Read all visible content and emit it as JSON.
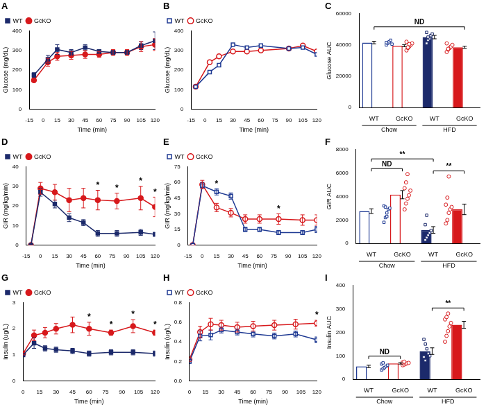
{
  "chart_data": [
    {
      "type": "line",
      "title": "A",
      "x_label": "Time (min)",
      "y_label": "Glucose (mg/dL)",
      "x": [
        -10,
        5,
        15,
        30,
        45,
        60,
        75,
        90,
        105,
        120
      ],
      "series": [
        {
          "name": "WT",
          "color": "#1c2a6b",
          "marker": "square",
          "line_style": "solid",
          "values": [
            175,
            255,
            305,
            290,
            315,
            295,
            290,
            290,
            325,
            350
          ],
          "errors": [
            12,
            20,
            25,
            15,
            15,
            10,
            10,
            10,
            20,
            45
          ]
        },
        {
          "name": "GcKO",
          "color": "#d7191c",
          "marker": "circle",
          "line_style": "solid",
          "values": [
            148,
            240,
            270,
            275,
            280,
            280,
            290,
            290,
            320,
            330
          ],
          "errors": [
            10,
            20,
            20,
            20,
            20,
            15,
            15,
            15,
            25,
            30
          ]
        }
      ],
      "xlim": [
        -15,
        120
      ],
      "xticks": [
        -15,
        0,
        15,
        30,
        45,
        60,
        75,
        90,
        105,
        120
      ],
      "ylim": [
        0,
        400
      ],
      "yticks": [
        0,
        100,
        200,
        300,
        400
      ],
      "grid": false,
      "legend": "upper left"
    },
    {
      "type": "line",
      "title": "B",
      "x_label": "Time (min)",
      "y_label": "Glucose (mg/dL)",
      "x": [
        -10,
        5,
        15,
        30,
        45,
        60,
        90,
        105,
        120
      ],
      "series": [
        {
          "name": "WT",
          "color": "#1f3a93",
          "marker": "open-square",
          "line_style": "solid",
          "values": [
            115,
            190,
            225,
            330,
            315,
            325,
            310,
            315,
            280
          ]
        },
        {
          "name": "GcKO",
          "color": "#d7191c",
          "marker": "open-circle",
          "line_style": "solid",
          "values": [
            115,
            240,
            270,
            295,
            295,
            300,
            310,
            325,
            295
          ]
        }
      ],
      "xlim": [
        -15,
        120
      ],
      "xticks": [
        -15,
        0,
        15,
        30,
        45,
        60,
        75,
        90,
        105,
        120
      ],
      "ylim": [
        0,
        400
      ],
      "yticks": [
        0,
        100,
        200,
        300,
        400
      ],
      "grid": false,
      "legend": "upper left"
    },
    {
      "type": "bar",
      "title": "C",
      "y_label": "Glucose AUC",
      "categories": [
        "WT",
        "GcKO",
        "WT",
        "GcKO"
      ],
      "group": [
        "Chow",
        "Chow",
        "HFD",
        "HFD"
      ],
      "values": [
        41500,
        39500,
        45000,
        38500
      ],
      "errors": [
        800,
        700,
        1100,
        700
      ],
      "points": [
        [
          40000,
          41000,
          42000,
          43000,
          40500,
          41500
        ],
        [
          36500,
          38000,
          39000,
          40000,
          41000,
          42000,
          38500,
          40500
        ],
        [
          41000,
          43000,
          44000,
          46000,
          47000,
          48000,
          45000
        ],
        [
          35500,
          37000,
          38000,
          39000,
          40000,
          41000,
          37500
        ]
      ],
      "colors": [
        "#1f3a93",
        "#d7191c",
        "#1c2a6b",
        "#d7191c"
      ],
      "marker": [
        "open-square",
        "open-circle",
        "square",
        "circle"
      ],
      "comparisons": [
        {
          "from": 0,
          "to": 3,
          "label": "ND"
        }
      ],
      "ylim": [
        0,
        60000
      ],
      "yticks": [
        0,
        20000,
        40000,
        60000
      ],
      "grid": false
    },
    {
      "type": "line",
      "title": "D",
      "x_label": "Time (min)",
      "y_label": "GIR (mg/kg/min)",
      "x": [
        -10,
        0,
        15,
        30,
        45,
        60,
        80,
        105,
        120
      ],
      "series": [
        {
          "name": "WT",
          "color": "#1c2a6b",
          "marker": "square",
          "line_style": "solid",
          "values": [
            0,
            27,
            21,
            14,
            11.5,
            6,
            6,
            6.5,
            5.5
          ],
          "errors": [
            0,
            2,
            2,
            2,
            1.5,
            1.5,
            1.5,
            1.5,
            1
          ]
        },
        {
          "name": "GcKO",
          "color": "#d7191c",
          "marker": "circle",
          "line_style": "solid",
          "values": [
            0,
            29,
            27,
            23,
            24,
            23,
            22.5,
            24,
            19.5
          ],
          "errors": [
            0,
            3,
            4,
            6,
            5,
            5,
            4,
            6,
            5
          ]
        }
      ],
      "annotations": [
        {
          "x": 60,
          "text": "*"
        },
        {
          "x": 80,
          "text": "*"
        },
        {
          "x": 105,
          "text": "*"
        },
        {
          "x": 120,
          "text": "*"
        }
      ],
      "xlim": [
        -15,
        120
      ],
      "xticks": [
        -15,
        0,
        15,
        30,
        45,
        60,
        75,
        90,
        105,
        120
      ],
      "ylim": [
        0,
        40
      ],
      "yticks": [
        0,
        10,
        20,
        30,
        40
      ],
      "grid": false,
      "legend": "upper left"
    },
    {
      "type": "line",
      "title": "E",
      "x_label": "Time (min)",
      "y_label": "GIR (mg/kg/min)",
      "x": [
        -10,
        0,
        15,
        30,
        45,
        60,
        80,
        105,
        120
      ],
      "series": [
        {
          "name": "WT",
          "color": "#1f3a93",
          "marker": "open-square",
          "line_style": "solid",
          "values": [
            0,
            57,
            51,
            47,
            15,
            15,
            12,
            12,
            15
          ],
          "errors": [
            0,
            3,
            3,
            3,
            2,
            2,
            2,
            2,
            3
          ]
        },
        {
          "name": "GcKO",
          "color": "#d7191c",
          "marker": "open-circle",
          "line_style": "solid",
          "values": [
            0,
            58,
            36,
            31,
            25,
            25,
            25,
            24,
            24
          ],
          "errors": [
            0,
            4,
            4,
            4,
            4,
            4,
            5,
            5,
            5
          ]
        }
      ],
      "annotations": [
        {
          "x": 15,
          "text": "*"
        },
        {
          "x": 80,
          "text": "*"
        }
      ],
      "xlim": [
        -15,
        120
      ],
      "xticks": [
        -15,
        0,
        15,
        30,
        45,
        60,
        75,
        90,
        105,
        120
      ],
      "ylim": [
        0,
        75
      ],
      "yticks": [
        0,
        15,
        30,
        45,
        60,
        75
      ],
      "grid": false,
      "legend": "upper left"
    },
    {
      "type": "bar",
      "title": "F",
      "y_label": "GIR AUC",
      "categories": [
        "WT",
        "GcKO",
        "WT",
        "GcKO"
      ],
      "group": [
        "Chow",
        "Chow",
        "HFD",
        "HFD"
      ],
      "values": [
        2750,
        4150,
        1150,
        2900
      ],
      "errors": [
        200,
        350,
        280,
        450
      ],
      "points": [
        [
          1800,
          2200,
          2600,
          2900,
          3000,
          3200,
          3100,
          2300
        ],
        [
          2900,
          3400,
          3800,
          4100,
          4500,
          4700,
          5200,
          5900
        ],
        [
          300,
          500,
          700,
          900,
          1100,
          1600,
          2400
        ],
        [
          1700,
          2000,
          2600,
          2900,
          3100,
          3300,
          3900,
          5700
        ]
      ],
      "colors": [
        "#1f3a93",
        "#d7191c",
        "#1c2a6b",
        "#d7191c"
      ],
      "marker": [
        "open-square",
        "open-circle",
        "square",
        "circle"
      ],
      "comparisons": [
        {
          "from": 0,
          "to": 1,
          "label": "ND"
        },
        {
          "from": 0,
          "to": 2,
          "label": "**"
        },
        {
          "from": 2,
          "to": 3,
          "label": "**"
        }
      ],
      "ylim": [
        0,
        8000
      ],
      "yticks": [
        0,
        2000,
        4000,
        6000,
        8000
      ],
      "grid": false
    },
    {
      "type": "line",
      "title": "G",
      "x_label": "Time (min)",
      "y_label": "Insulin (ug/L)",
      "x": [
        0,
        10,
        20,
        30,
        45,
        60,
        80,
        100,
        120
      ],
      "series": [
        {
          "name": "WT",
          "color": "#1c2a6b",
          "marker": "square",
          "line_style": "solid",
          "values": [
            1.0,
            1.45,
            1.25,
            1.2,
            1.15,
            1.05,
            1.1,
            1.1,
            1.05
          ],
          "errors": [
            0,
            0.2,
            0.1,
            0.1,
            0.1,
            0.1,
            0.1,
            0.1,
            0.1
          ]
        },
        {
          "name": "GcKO",
          "color": "#d7191c",
          "marker": "circle",
          "line_style": "solid",
          "values": [
            1.05,
            1.75,
            1.85,
            2.0,
            2.15,
            2.0,
            1.85,
            2.1,
            1.85
          ],
          "errors": [
            0.05,
            0.2,
            0.2,
            0.2,
            0.3,
            0.25,
            0.1,
            0.25,
            0.1
          ]
        }
      ],
      "annotations": [
        {
          "x": 60,
          "text": "*"
        },
        {
          "x": 80,
          "text": "*"
        },
        {
          "x": 100,
          "text": "*"
        },
        {
          "x": 120,
          "text": "*"
        }
      ],
      "xlim": [
        0,
        120
      ],
      "xticks": [
        0,
        15,
        30,
        45,
        60,
        75,
        90,
        105,
        120
      ],
      "ylim": [
        0,
        3
      ],
      "yticks": [
        0,
        1,
        2,
        3
      ],
      "grid": false,
      "legend": "upper left"
    },
    {
      "type": "line",
      "title": "H",
      "x_label": "Time (min)",
      "y_label": "Insulin (ug/L)",
      "x": [
        0,
        10,
        20,
        30,
        45,
        60,
        80,
        100,
        120
      ],
      "series": [
        {
          "name": "WT",
          "color": "#1f3a93",
          "marker": "open-square",
          "line_style": "solid",
          "values": [
            0.2,
            0.46,
            0.47,
            0.52,
            0.5,
            0.48,
            0.46,
            0.48,
            0.42
          ],
          "errors": [
            0.02,
            0.05,
            0.05,
            0.03,
            0.03,
            0.03,
            0.03,
            0.03,
            0.03
          ]
        },
        {
          "name": "GcKO",
          "color": "#d7191c",
          "marker": "open-circle",
          "line_style": "solid",
          "values": [
            0.22,
            0.5,
            0.58,
            0.57,
            0.55,
            0.56,
            0.57,
            0.58,
            0.59
          ],
          "errors": [
            0.02,
            0.06,
            0.06,
            0.05,
            0.05,
            0.05,
            0.05,
            0.05,
            0.03
          ]
        }
      ],
      "annotations": [
        {
          "x": 120,
          "text": "*"
        }
      ],
      "xlim": [
        0,
        120
      ],
      "xticks": [
        0,
        15,
        30,
        45,
        60,
        75,
        90,
        105,
        120
      ],
      "ylim": [
        0,
        0.8
      ],
      "yticks": [
        {
          "value": 0,
          "label": "0.0"
        },
        0.2,
        0.4,
        0.6,
        0.8
      ],
      "grid": false,
      "legend": "upper left"
    },
    {
      "type": "bar",
      "title": "I",
      "y_label": "Insulin AUC",
      "categories": [
        "WT",
        "GcKO",
        "WT",
        "GcKO"
      ],
      "group": [
        "Chow",
        "Chow",
        "HFD",
        "HFD"
      ],
      "values": [
        55,
        68,
        120,
        232
      ],
      "errors": [
        5,
        3,
        14,
        15
      ],
      "points": [
        [
          40,
          45,
          50,
          55,
          60,
          65,
          70
        ],
        [
          60,
          63,
          66,
          68,
          70,
          72,
          75
        ],
        [
          170,
          150,
          130,
          110,
          100,
          95,
          80
        ],
        [
          160,
          185,
          205,
          225,
          240,
          255,
          265,
          280
        ]
      ],
      "colors": [
        "#1f3a93",
        "#d7191c",
        "#1c2a6b",
        "#d7191c"
      ],
      "marker": [
        "open-square",
        "open-circle",
        "square",
        "circle"
      ],
      "comparisons": [
        {
          "from": 0,
          "to": 1,
          "label": "ND"
        },
        {
          "from": 2,
          "to": 3,
          "label": "**"
        }
      ],
      "ylim": [
        0,
        400
      ],
      "yticks": [
        0,
        100,
        200,
        300,
        400
      ],
      "grid": false
    }
  ]
}
